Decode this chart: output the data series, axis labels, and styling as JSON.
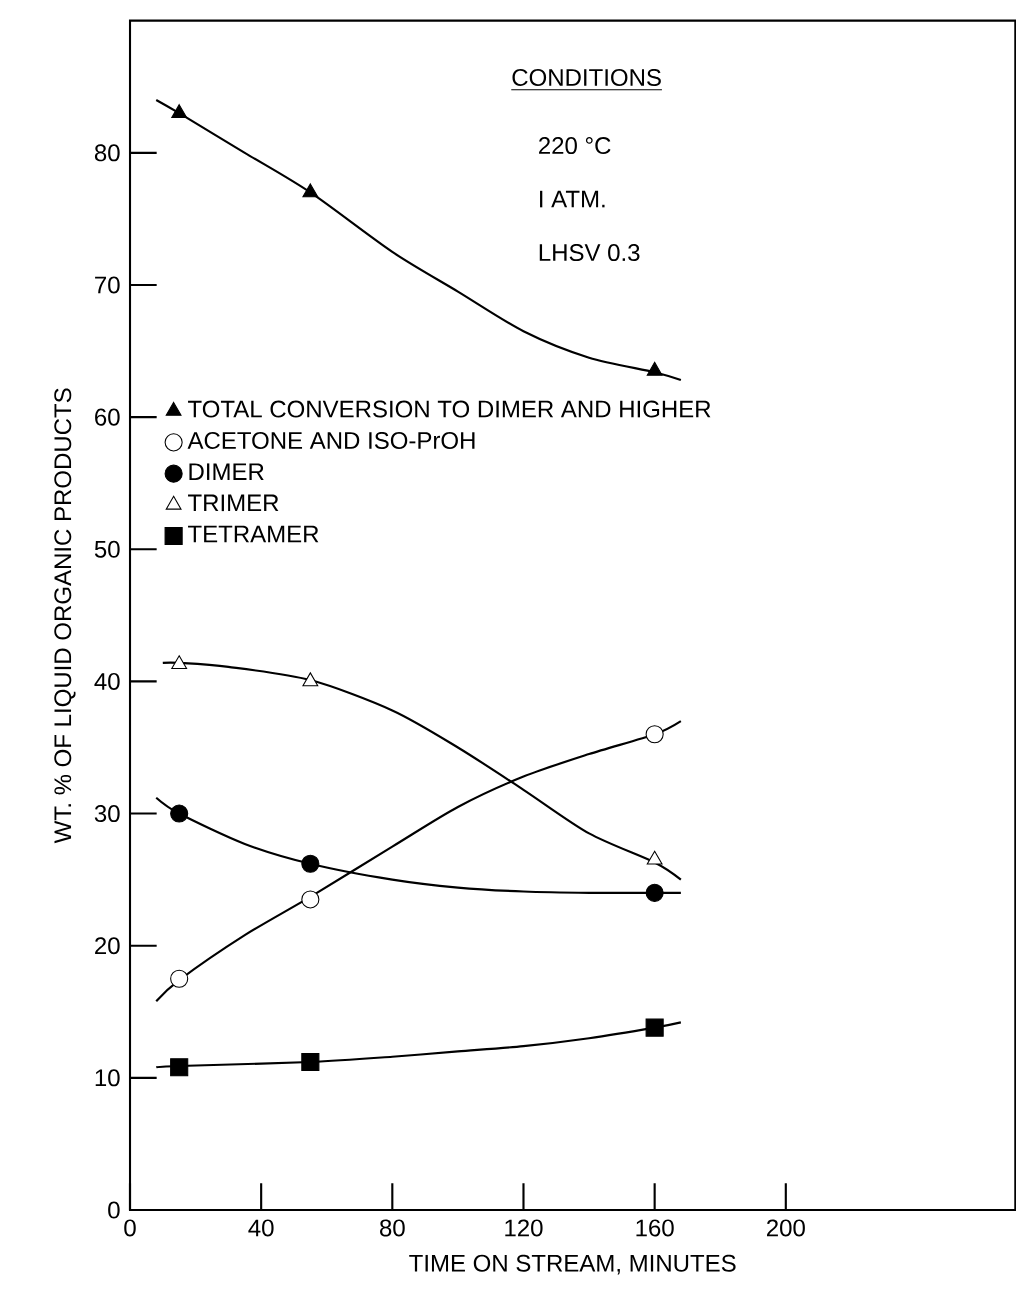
{
  "chart_data": {
    "type": "scatter",
    "xlabel": "TIME ON STREAM, MINUTES",
    "ylabel": "WT. % OF LIQUID ORGANIC PRODUCTS",
    "annotations": [
      "CONDITIONS",
      "220 °C",
      "I ATM.",
      "LHSV 0.3"
    ],
    "xlim": [
      0,
      270
    ],
    "ylim": [
      0,
      90
    ],
    "xticks": [
      0,
      40,
      80,
      120,
      160,
      200
    ],
    "yticks": [
      0,
      10,
      20,
      30,
      40,
      50,
      60,
      70,
      80
    ],
    "legend": "left",
    "grid": false,
    "series": [
      {
        "name": "TOTAL CONVERSION TO DIMER AND HIGHER",
        "marker": "triangle",
        "color": "#000000",
        "x": [
          15,
          55,
          160
        ],
        "values": [
          83,
          77,
          63.5
        ]
      },
      {
        "name": "ACETONE AND ISO-PrOH",
        "marker": "circle",
        "color": "#ffffff",
        "x": [
          15,
          55,
          160
        ],
        "values": [
          17.5,
          23.5,
          36
        ]
      },
      {
        "name": "DIMER",
        "marker": "circle",
        "color": "#000000",
        "x": [
          15,
          55,
          160
        ],
        "values": [
          30,
          26.2,
          24
        ]
      },
      {
        "name": "TRIMER",
        "marker": "triangle",
        "color": "#ffffff",
        "x": [
          15,
          55,
          160
        ],
        "values": [
          41.3,
          40,
          26.5
        ]
      },
      {
        "name": "TETRAMER",
        "marker": "square",
        "color": "#000000",
        "x": [
          15,
          55,
          160
        ],
        "values": [
          10.8,
          11.2,
          13.8
        ]
      },
      {
        "type": "line",
        "color": "#000000",
        "x": [
          8,
          15,
          35,
          55,
          80,
          100,
          120,
          140,
          160,
          168
        ],
        "values": [
          84,
          83,
          80,
          77,
          72.5,
          69.5,
          66.5,
          64.5,
          63.4,
          62.8
        ]
      },
      {
        "type": "line",
        "color": "#000000",
        "x": [
          8,
          15,
          35,
          55,
          80,
          100,
          120,
          140,
          160,
          168
        ],
        "values": [
          15.8,
          17.4,
          20.8,
          23.7,
          27.5,
          30.5,
          32.8,
          34.5,
          36,
          37
        ]
      },
      {
        "type": "line",
        "color": "#000000",
        "x": [
          8,
          15,
          35,
          55,
          80,
          100,
          120,
          140,
          160,
          168
        ],
        "values": [
          31.2,
          30,
          27.7,
          26.2,
          25,
          24.4,
          24.1,
          24,
          24,
          24
        ]
      },
      {
        "type": "line",
        "color": "#000000",
        "x": [
          10,
          15,
          30,
          55,
          80,
          100,
          120,
          140,
          160,
          168
        ],
        "values": [
          41.4,
          41.4,
          41.1,
          40.1,
          37.8,
          35,
          31.8,
          28.5,
          26.3,
          25
        ]
      },
      {
        "type": "line",
        "color": "#000000",
        "x": [
          8,
          15,
          55,
          80,
          100,
          120,
          140,
          160,
          168
        ],
        "values": [
          10.8,
          10.9,
          11.2,
          11.6,
          12,
          12.4,
          13,
          13.8,
          14.2
        ]
      }
    ]
  }
}
